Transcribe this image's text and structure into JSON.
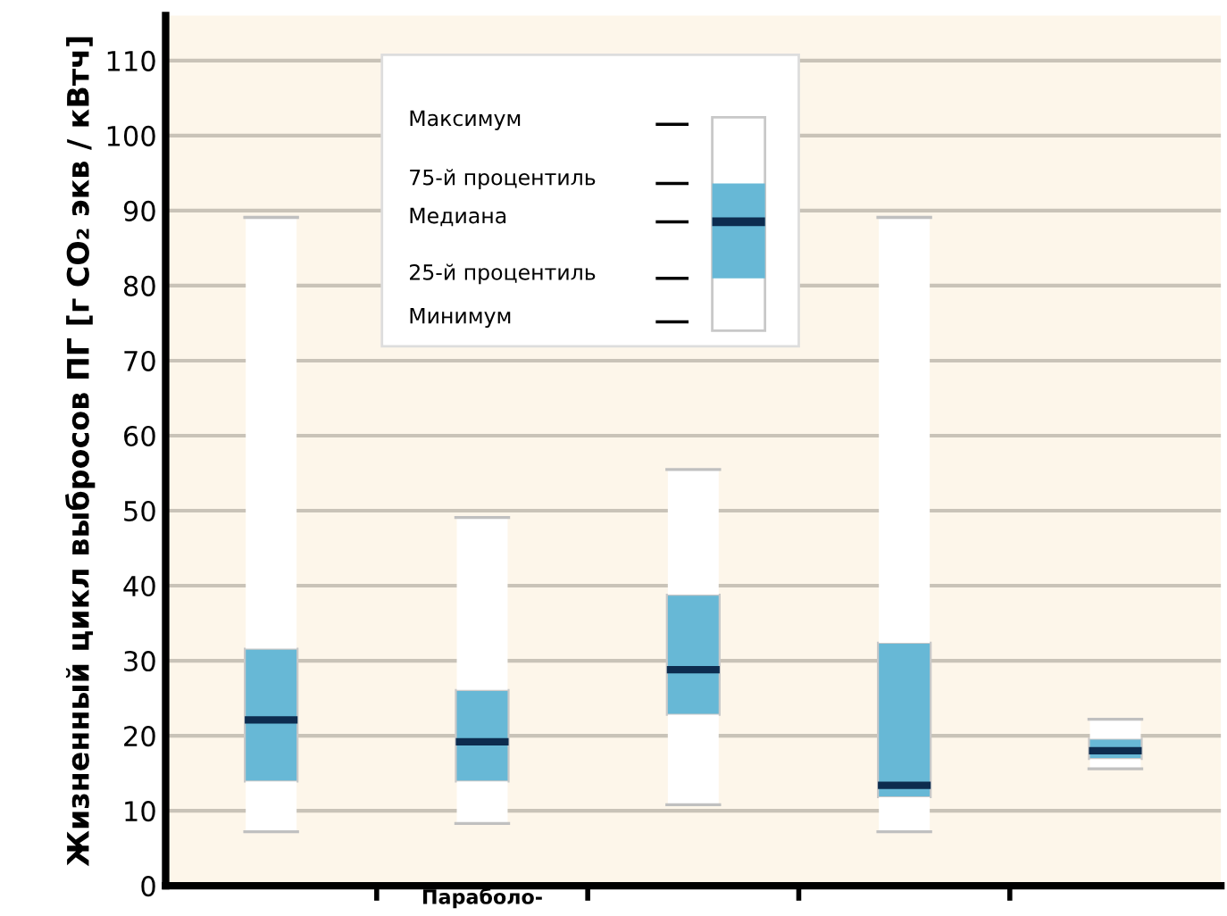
{
  "chart_data": {
    "type": "box",
    "ylabel": "Жизненный цикл выбросов ПГ [г CO₂ экв / кВтч]",
    "categories": [
      null,
      "Параболо-",
      null,
      null,
      null
    ],
    "boxes": [
      {
        "low": 7.2,
        "q1": 13.9,
        "median": 22.1,
        "q3": 31.6,
        "high": 89.1
      },
      {
        "low": 8.3,
        "q1": 13.9,
        "median": 19.2,
        "q3": 26.1,
        "high": 49.1
      },
      {
        "low": 10.8,
        "q1": 22.8,
        "median": 28.8,
        "q3": 38.8,
        "high": 55.5
      },
      {
        "low": 7.2,
        "q1": 11.8,
        "median": 13.4,
        "q3": 32.4,
        "high": 89.1
      },
      {
        "low": 15.6,
        "q1": 16.9,
        "median": 18.0,
        "q3": 19.6,
        "high": 22.2
      }
    ],
    "color": "#67b8d6",
    "ylim": [
      0,
      116
    ],
    "yticks": [
      0,
      10,
      20,
      30,
      40,
      50,
      60,
      70,
      80,
      90,
      100,
      110
    ],
    "grid": "y",
    "annotations": [
      "Максимум",
      "75-й процентиль",
      "Медиана",
      "25-й процентиль",
      "Минимум"
    ]
  }
}
